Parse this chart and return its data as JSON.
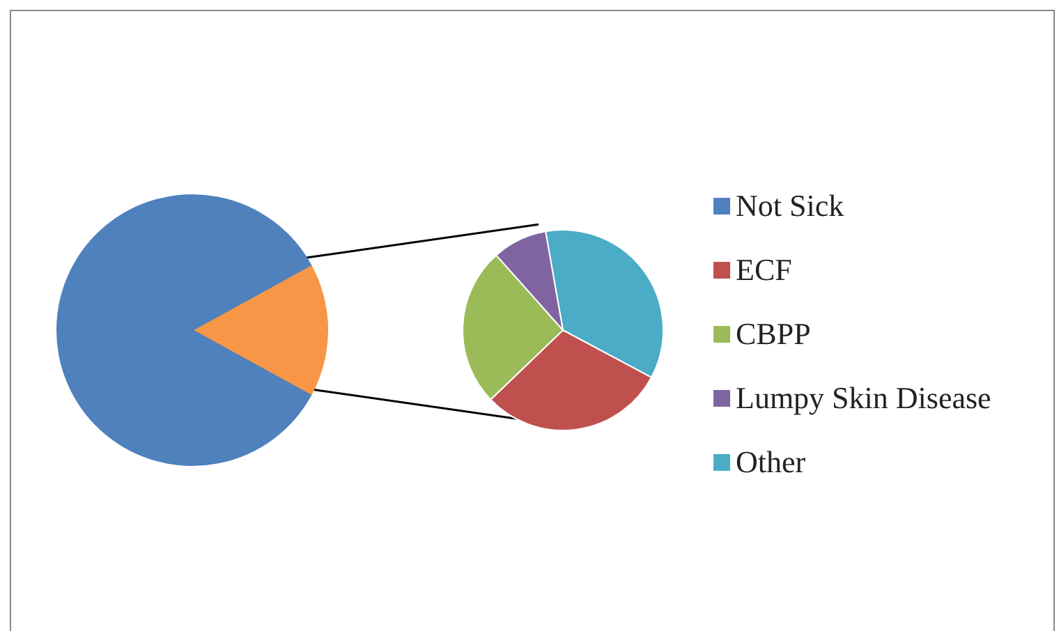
{
  "chart_data": {
    "type": "pie",
    "categories": [
      "Not Sick",
      "ECF",
      "CBPP",
      "Lumpy Skin Disease",
      "Other"
    ],
    "legend": "right",
    "series": [
      {
        "values": [
          84,
          4.8,
          4.1,
          1.4,
          5.7
        ],
        "colors": [
          "#4f81bd",
          "#f79646",
          "#f79646",
          "#f79646",
          "#f79646"
        ]
      },
      {
        "values": [
          null,
          30,
          25.6,
          8.8,
          35.6
        ],
        "colors": [
          "#4f81bd",
          "#c0504d",
          "#9bbb59",
          "#8064a2",
          "#4bacc6"
        ]
      }
    ]
  }
}
